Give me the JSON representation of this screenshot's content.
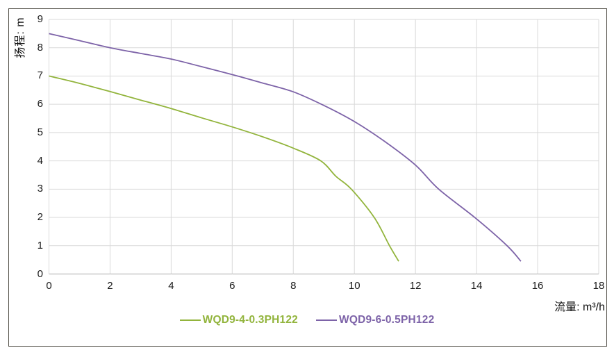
{
  "chart_data": {
    "type": "line",
    "title": "",
    "xlabel": "流量: m³/h",
    "ylabel": "扬程: m",
    "xlim": [
      0,
      18
    ],
    "ylim": [
      0,
      9
    ],
    "x_ticks": [
      0,
      2,
      4,
      6,
      8,
      10,
      12,
      14,
      16,
      18
    ],
    "y_ticks": [
      0,
      1,
      2,
      3,
      4,
      5,
      6,
      7,
      8,
      9
    ],
    "grid": true,
    "legend_position": "bottom-center",
    "series": [
      {
        "name": "WQD9-4-0.3PH122",
        "color": "#92B43C",
        "points": [
          [
            0,
            7.0
          ],
          [
            1,
            6.74
          ],
          [
            2,
            6.45
          ],
          [
            3,
            6.15
          ],
          [
            4,
            5.85
          ],
          [
            5,
            5.52
          ],
          [
            6,
            5.2
          ],
          [
            7,
            4.85
          ],
          [
            8,
            4.45
          ],
          [
            8.9,
            4.0
          ],
          [
            9.4,
            3.45
          ],
          [
            9.9,
            3.0
          ],
          [
            10.65,
            2.0
          ],
          [
            11.15,
            1.0
          ],
          [
            11.45,
            0.45
          ]
        ]
      },
      {
        "name": "WQD9-6-0.5PH122",
        "color": "#7D63A8",
        "points": [
          [
            0,
            8.5
          ],
          [
            1,
            8.25
          ],
          [
            2,
            8.0
          ],
          [
            3,
            7.8
          ],
          [
            4,
            7.6
          ],
          [
            5,
            7.33
          ],
          [
            6,
            7.05
          ],
          [
            7,
            6.75
          ],
          [
            8,
            6.44
          ],
          [
            9,
            5.96
          ],
          [
            10,
            5.39
          ],
          [
            11,
            4.68
          ],
          [
            12,
            3.85
          ],
          [
            12.76,
            3.0
          ],
          [
            13.94,
            2.0
          ],
          [
            15.0,
            1.0
          ],
          [
            15.45,
            0.45
          ]
        ]
      }
    ],
    "colors": {
      "grid": "#D9D9D9",
      "axis": "#A6A6A6",
      "frame_border": "#514F47",
      "tick_text": "#1A1A1A"
    }
  }
}
